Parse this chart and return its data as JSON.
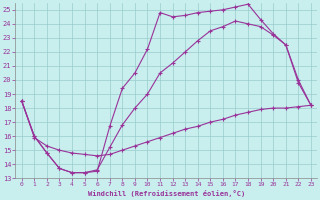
{
  "xlabel": "Windchill (Refroidissement éolien,°C)",
  "xlim": [
    -0.5,
    23.5
  ],
  "ylim": [
    13,
    25.5
  ],
  "xticks": [
    0,
    1,
    2,
    3,
    4,
    5,
    6,
    7,
    8,
    9,
    10,
    11,
    12,
    13,
    14,
    15,
    16,
    17,
    18,
    19,
    20,
    21,
    22,
    23
  ],
  "yticks": [
    13,
    14,
    15,
    16,
    17,
    18,
    19,
    20,
    21,
    22,
    23,
    24,
    25
  ],
  "bg_color": "#c8eeee",
  "line_color": "#993399",
  "grid_color": "#99cccc",
  "curve1_x": [
    0,
    1,
    2,
    3,
    4,
    5,
    6,
    7,
    8,
    9,
    10,
    11,
    12,
    13,
    14,
    15,
    16,
    17,
    18,
    19,
    20,
    21,
    22,
    23
  ],
  "curve1_y": [
    18.5,
    16.0,
    14.8,
    13.7,
    13.4,
    13.4,
    13.5,
    16.7,
    19.4,
    20.5,
    22.2,
    24.8,
    24.5,
    24.6,
    24.8,
    24.9,
    25.0,
    25.2,
    25.4,
    24.3,
    23.3,
    22.5,
    19.8,
    18.2
  ],
  "curve2_x": [
    0,
    1,
    2,
    3,
    4,
    5,
    6,
    7,
    8,
    9,
    10,
    11,
    12,
    13,
    14,
    15,
    16,
    17,
    18,
    19,
    20,
    21,
    22,
    23
  ],
  "curve2_y": [
    18.5,
    16.0,
    14.8,
    13.7,
    13.4,
    13.4,
    13.6,
    15.2,
    16.8,
    18.0,
    19.0,
    20.5,
    21.2,
    22.0,
    22.8,
    23.5,
    23.8,
    24.2,
    24.0,
    23.8,
    23.2,
    22.5,
    20.0,
    18.2
  ],
  "curve3_x": [
    0,
    1,
    2,
    3,
    4,
    5,
    6,
    7,
    8,
    9,
    10,
    11,
    12,
    13,
    14,
    15,
    16,
    17,
    18,
    19,
    20,
    21,
    22,
    23
  ],
  "curve3_y": [
    18.5,
    15.9,
    15.3,
    15.0,
    14.8,
    14.7,
    14.6,
    14.7,
    15.0,
    15.3,
    15.6,
    15.9,
    16.2,
    16.5,
    16.7,
    17.0,
    17.2,
    17.5,
    17.7,
    17.9,
    18.0,
    18.0,
    18.1,
    18.2
  ]
}
